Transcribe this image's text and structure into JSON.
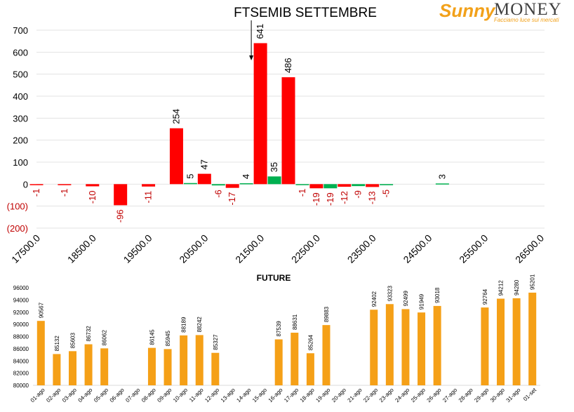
{
  "logo": {
    "brand": "Sunny",
    "brand_suffix": "MONEY",
    "tagline": "Facciamo luce sui mercati"
  },
  "colors": {
    "negative_bar": "#ff0000",
    "positive_bar": "#00b050",
    "future_bar": "#f5a017",
    "negative_label": "#c00000"
  },
  "chart_data": [
    {
      "type": "bar",
      "title": "FTSEMIB SETTEMBRE",
      "ylim": [
        -200,
        700
      ],
      "y_ticks": [
        700,
        600,
        500,
        400,
        300,
        200,
        100,
        0,
        -100,
        -200
      ],
      "y_tick_labels": [
        "700",
        "600",
        "500",
        "400",
        "300",
        "200",
        "100",
        "0",
        "(100)",
        "(200)"
      ],
      "x_tick_labels": [
        "17500.0",
        "18500.0",
        "19500.0",
        "20500.0",
        "21500.0",
        "22500.0",
        "23500.0",
        "24500.0",
        "25500.0",
        "26500.0"
      ],
      "x_ticks": [
        17500,
        18500,
        19500,
        20500,
        21500,
        22500,
        23500,
        24500,
        25500,
        26500
      ],
      "xlim": [
        17500,
        26500
      ],
      "grid": true,
      "arrow_at": 21500,
      "series": [
        {
          "color": "red",
          "points": [
            {
              "x": 17500,
              "value": -1
            },
            {
              "x": 18000,
              "value": -1
            },
            {
              "x": 18500,
              "value": -10
            },
            {
              "x": 19000,
              "value": -96
            },
            {
              "x": 19500,
              "value": -11
            },
            {
              "x": 20000,
              "value": 254
            },
            {
              "x": 20500,
              "value": 47
            },
            {
              "x": 21000,
              "value": -17
            },
            {
              "x": 21500,
              "value": 641
            },
            {
              "x": 22000,
              "value": 486
            },
            {
              "x": 22500,
              "value": -19
            },
            {
              "x": 23000,
              "value": -12
            },
            {
              "x": 23500,
              "value": -13
            }
          ]
        },
        {
          "color": "green",
          "points": [
            {
              "x": 20250,
              "value": 5
            },
            {
              "x": 20750,
              "value": -6
            },
            {
              "x": 21250,
              "value": 4
            },
            {
              "x": 21750,
              "value": 35
            },
            {
              "x": 22250,
              "value": -1
            },
            {
              "x": 22750,
              "value": -19
            },
            {
              "x": 23250,
              "value": -9
            },
            {
              "x": 23750,
              "value": -5
            },
            {
              "x": 24750,
              "value": 3
            }
          ]
        }
      ]
    },
    {
      "type": "bar",
      "title": "FUTURE",
      "ylim": [
        80000,
        96000
      ],
      "y_ticks": [
        96000,
        94000,
        92000,
        90000,
        88000,
        86000,
        84000,
        82000,
        80000
      ],
      "categories": [
        "01-ago",
        "02-ago",
        "03-ago",
        "04-ago",
        "05-ago",
        "06-ago",
        "07-ago",
        "08-ago",
        "09-ago",
        "10-ago",
        "11-ago",
        "12-ago",
        "13-ago",
        "14-ago",
        "15-ago",
        "16-ago",
        "17-ago",
        "18-ago",
        "19-ago",
        "20-ago",
        "21-ago",
        "22-ago",
        "23-ago",
        "24-ago",
        "25-ago",
        "26-ago",
        "27-ago",
        "28-ago",
        "29-ago",
        "30-ago",
        "31-ago",
        "01-set"
      ],
      "values": [
        90567,
        85132,
        85603,
        86732,
        86062,
        null,
        null,
        86145,
        85945,
        88189,
        88242,
        85327,
        null,
        null,
        null,
        87539,
        88631,
        85264,
        89883,
        null,
        null,
        92402,
        93323,
        92499,
        91949,
        93018,
        null,
        null,
        92764,
        94212,
        94280,
        95201
      ]
    }
  ]
}
